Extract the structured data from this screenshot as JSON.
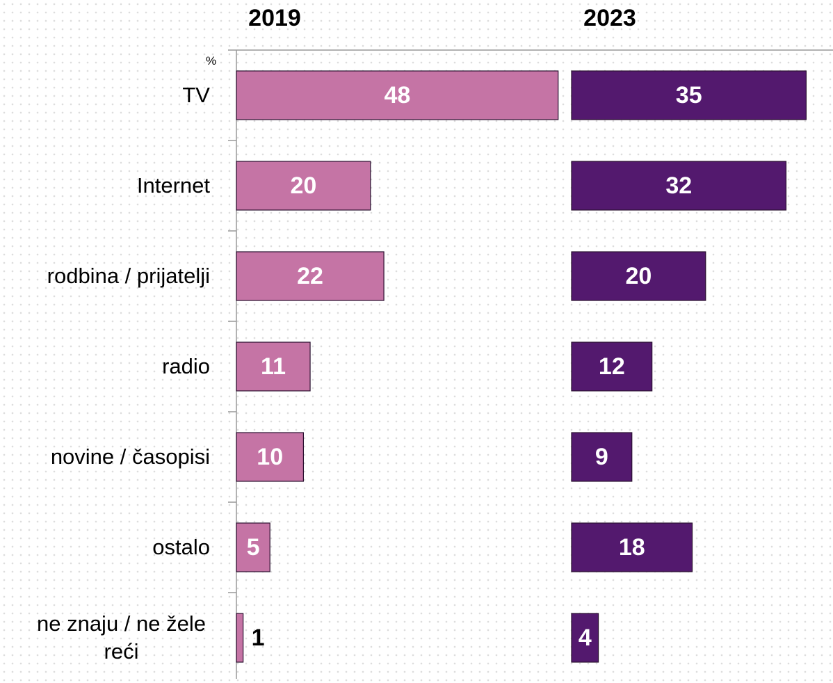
{
  "chart_data": {
    "type": "bar",
    "orientation": "horizontal",
    "unit_label": "%",
    "categories": [
      "TV",
      "Internet",
      "rodbina / prijatelji",
      "radio",
      "novine / časopisi",
      "ostalo",
      "ne znaju / ne žele reći"
    ],
    "series": [
      {
        "name": "2019",
        "color": "#c574a5",
        "values": [
          48,
          20,
          22,
          11,
          10,
          5,
          1
        ]
      },
      {
        "name": "2023",
        "color": "#53196e",
        "values": [
          35,
          32,
          20,
          12,
          9,
          18,
          4
        ]
      }
    ],
    "xlim": [
      0,
      50
    ]
  }
}
